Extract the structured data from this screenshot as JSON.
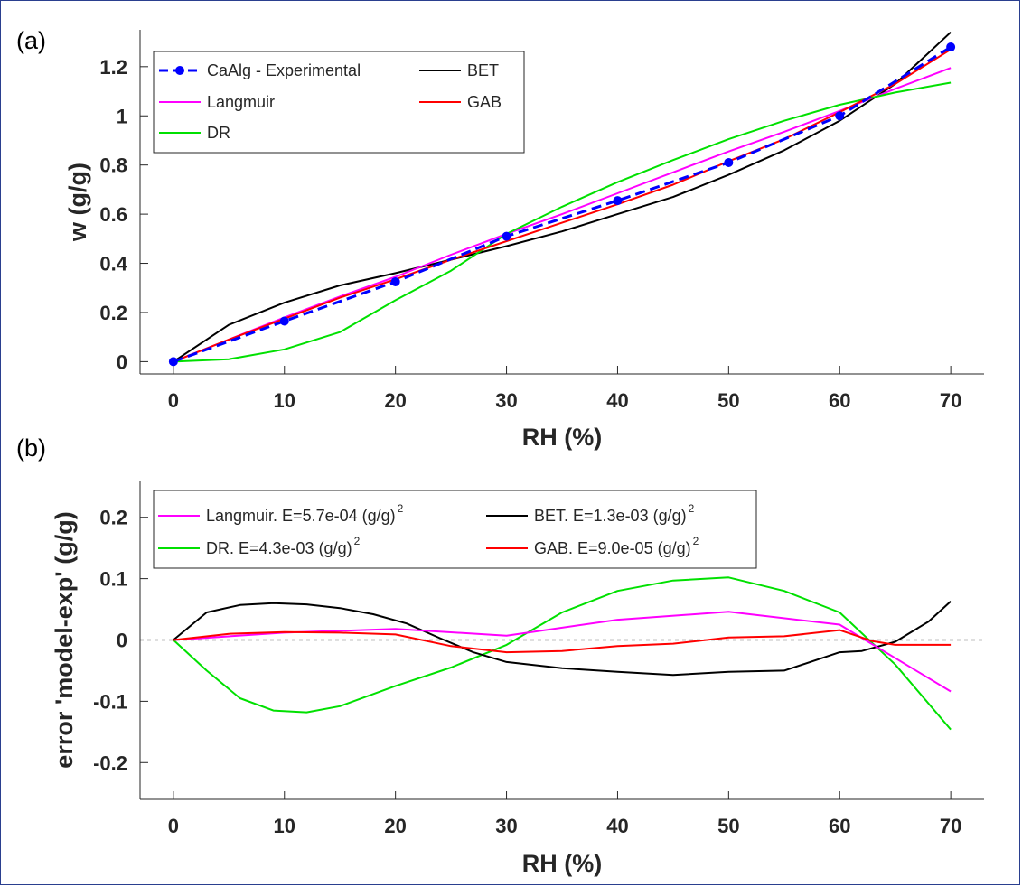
{
  "chart_data": [
    {
      "panel_label": "(a)",
      "type": "line",
      "xlabel": "RH (%)",
      "ylabel": "w (g/g)",
      "xlim": [
        -3,
        73
      ],
      "ylim": [
        -0.05,
        1.35
      ],
      "xticks": [
        0,
        10,
        20,
        30,
        40,
        50,
        60,
        70
      ],
      "yticks": [
        0,
        0.2,
        0.4,
        0.6,
        0.8,
        1,
        1.2
      ],
      "ytick_labels": [
        "0",
        "0.2",
        "0.4",
        "0.6",
        "0.8",
        "1",
        "1.2"
      ],
      "grid": false,
      "legend": "top-left",
      "series": [
        {
          "name": "CaAlg - Experimental",
          "color": "#0000ff",
          "style": "dashed-markers",
          "x": [
            0,
            10,
            20,
            30,
            40,
            50,
            60,
            70
          ],
          "y": [
            0,
            0.165,
            0.325,
            0.51,
            0.655,
            0.81,
            1.0,
            1.28
          ]
        },
        {
          "name": "BET",
          "color": "#000000",
          "style": "solid",
          "x": [
            0,
            5,
            10,
            15,
            20,
            25,
            30,
            35,
            40,
            45,
            50,
            55,
            60,
            65,
            70
          ],
          "y": [
            0,
            0.15,
            0.24,
            0.31,
            0.36,
            0.415,
            0.47,
            0.53,
            0.6,
            0.67,
            0.76,
            0.86,
            0.98,
            1.13,
            1.34
          ]
        },
        {
          "name": "Langmuir",
          "color": "#ff00ff",
          "style": "solid",
          "x": [
            0,
            5,
            10,
            15,
            20,
            25,
            30,
            35,
            40,
            45,
            50,
            55,
            60,
            65,
            70
          ],
          "y": [
            0,
            0.09,
            0.18,
            0.265,
            0.345,
            0.435,
            0.52,
            0.6,
            0.685,
            0.77,
            0.855,
            0.935,
            1.02,
            1.11,
            1.195
          ]
        },
        {
          "name": "GAB",
          "color": "#ff0000",
          "style": "solid",
          "x": [
            0,
            5,
            10,
            15,
            20,
            25,
            30,
            35,
            40,
            45,
            50,
            55,
            60,
            65,
            70
          ],
          "y": [
            0,
            0.09,
            0.175,
            0.26,
            0.335,
            0.415,
            0.49,
            0.565,
            0.64,
            0.72,
            0.815,
            0.905,
            1.015,
            1.13,
            1.27
          ]
        },
        {
          "name": "DR",
          "color": "#00e000",
          "style": "solid",
          "x": [
            0,
            5,
            10,
            15,
            20,
            25,
            30,
            35,
            40,
            45,
            50,
            55,
            60,
            65,
            70
          ],
          "y": [
            0,
            0.01,
            0.05,
            0.12,
            0.25,
            0.37,
            0.52,
            0.63,
            0.73,
            0.82,
            0.905,
            0.98,
            1.045,
            1.095,
            1.135
          ]
        }
      ]
    },
    {
      "panel_label": "(b)",
      "type": "line",
      "xlabel": "RH (%)",
      "ylabel": "error 'model-exp' (g/g)",
      "xlim": [
        -3,
        73
      ],
      "ylim": [
        -0.26,
        0.26
      ],
      "xticks": [
        0,
        10,
        20,
        30,
        40,
        50,
        60,
        70
      ],
      "yticks": [
        -0.2,
        -0.1,
        0,
        0.1,
        0.2
      ],
      "ytick_labels": [
        "-0.2",
        "-0.1",
        "0",
        "0.1",
        "0.2"
      ],
      "grid": false,
      "legend": "top",
      "zero_line": true,
      "series": [
        {
          "name": "Langmuir. E=5.7e-04 (g/g)",
          "exp": "2",
          "color": "#ff00ff",
          "x": [
            0,
            10,
            20,
            30,
            40,
            50,
            60,
            70
          ],
          "y": [
            0,
            0.012,
            0.018,
            0.007,
            0.033,
            0.046,
            0.025,
            -0.084
          ]
        },
        {
          "name": "BET. E=1.3e-03 (g/g)",
          "exp": "2",
          "color": "#000000",
          "x": [
            0,
            3,
            6,
            9,
            12,
            15,
            18,
            21,
            24,
            27,
            30,
            35,
            40,
            45,
            50,
            55,
            60,
            62,
            65,
            68,
            70
          ],
          "y": [
            0,
            0.045,
            0.057,
            0.06,
            0.058,
            0.052,
            0.042,
            0.027,
            0.003,
            -0.02,
            -0.036,
            -0.046,
            -0.052,
            -0.057,
            -0.052,
            -0.05,
            -0.02,
            -0.018,
            -0.003,
            0.03,
            0.063
          ]
        },
        {
          "name": "DR. E=4.3e-03 (g/g)",
          "exp": "2",
          "color": "#00e000",
          "x": [
            0,
            3,
            6,
            9,
            12,
            15,
            20,
            25,
            30,
            35,
            40,
            45,
            50,
            55,
            60,
            65,
            70
          ],
          "y": [
            0,
            -0.05,
            -0.095,
            -0.115,
            -0.118,
            -0.108,
            -0.075,
            -0.045,
            -0.008,
            0.045,
            0.08,
            0.097,
            0.102,
            0.08,
            0.045,
            -0.04,
            -0.146
          ]
        },
        {
          "name": "GAB. E=9.0e-05 (g/g)",
          "exp": "2",
          "color": "#ff0000",
          "x": [
            0,
            5,
            10,
            15,
            20,
            25,
            30,
            35,
            40,
            45,
            50,
            55,
            60,
            63,
            65,
            70
          ],
          "y": [
            0,
            0.01,
            0.013,
            0.012,
            0.009,
            -0.01,
            -0.02,
            -0.018,
            -0.01,
            -0.006,
            0.004,
            0.006,
            0.016,
            -0.002,
            -0.008,
            -0.008
          ]
        }
      ]
    }
  ]
}
